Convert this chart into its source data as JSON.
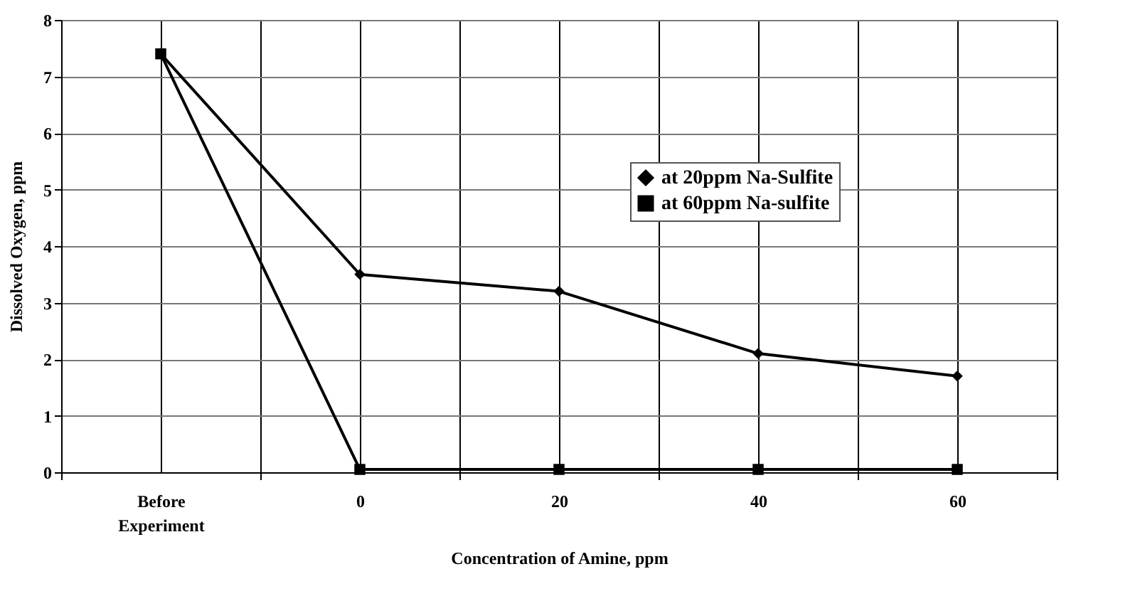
{
  "chart_data": {
    "type": "line",
    "xlabel": "Concentration of Amine, ppm",
    "ylabel": "Dissolved Oxygen, ppm",
    "categories": [
      "Before Experiment",
      "0",
      "20",
      "40",
      "60"
    ],
    "series": [
      {
        "name": "at 20ppm Na-Sulfite",
        "color": "#000000",
        "marker": "diamond",
        "values": [
          7.4,
          3.5,
          3.2,
          2.1,
          1.7
        ]
      },
      {
        "name": "at 60ppm Na-sulfite",
        "color": "#000000",
        "marker": "square",
        "values": [
          7.4,
          0.05,
          0.05,
          0.05,
          0.05
        ]
      }
    ],
    "ylim": [
      0,
      8
    ],
    "yticks": [
      0,
      1,
      2,
      3,
      4,
      5,
      6,
      7,
      8
    ],
    "grid": true,
    "legend": "right",
    "line_style": "solid"
  }
}
